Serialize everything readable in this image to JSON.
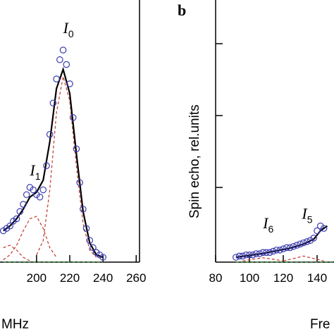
{
  "chart_data": [
    {
      "type": "scatter",
      "panel_letter": "",
      "xlabel": "MHz",
      "ylabel": "",
      "x_ticks": [
        200,
        220,
        240,
        260
      ],
      "xlim": [
        178,
        262
      ],
      "ylim": [
        0,
        1.0
      ],
      "axis_color": "#000000",
      "annotations": [
        {
          "text": "I",
          "sub": "0",
          "x": 216,
          "y": 0.95
        },
        {
          "text": "I",
          "sub": "1",
          "x": 196,
          "y": 0.36
        }
      ],
      "series": [
        {
          "role": "experimental",
          "marker": "open-circle",
          "color": "#3a3ab0",
          "x": [
            180,
            182,
            184,
            186,
            188,
            190,
            192,
            194,
            196,
            198,
            200,
            202,
            204,
            206,
            208,
            210,
            212,
            214,
            216,
            218,
            220,
            222,
            224,
            226,
            228,
            230,
            232,
            234,
            236,
            238,
            240
          ],
          "y": [
            0.13,
            0.14,
            0.15,
            0.17,
            0.18,
            0.21,
            0.24,
            0.28,
            0.31,
            0.3,
            0.28,
            0.27,
            0.3,
            0.4,
            0.53,
            0.66,
            0.76,
            0.84,
            0.88,
            0.82,
            0.74,
            0.6,
            0.47,
            0.33,
            0.22,
            0.14,
            0.09,
            0.06,
            0.04,
            0.03,
            0.02
          ]
        },
        {
          "role": "fit",
          "color": "#000000",
          "x": [
            180,
            184,
            188,
            192,
            196,
            200,
            204,
            208,
            212,
            216,
            220,
            224,
            228,
            232,
            236,
            240
          ],
          "y": [
            0.13,
            0.15,
            0.18,
            0.22,
            0.27,
            0.29,
            0.34,
            0.5,
            0.72,
            0.8,
            0.7,
            0.45,
            0.21,
            0.08,
            0.03,
            0.02
          ]
        },
        {
          "role": "component",
          "line": "dashed",
          "color": "#c0392b",
          "x": [
            200,
            204,
            208,
            212,
            216,
            220,
            224,
            228,
            232,
            236
          ],
          "y": [
            0.03,
            0.09,
            0.3,
            0.62,
            0.77,
            0.67,
            0.4,
            0.16,
            0.05,
            0.02
          ]
        },
        {
          "role": "component",
          "line": "dashed",
          "color": "#c0392b",
          "x": [
            180,
            184,
            188,
            192,
            196,
            200,
            204,
            208,
            212
          ],
          "y": [
            0.01,
            0.03,
            0.07,
            0.13,
            0.18,
            0.19,
            0.14,
            0.06,
            0.02
          ]
        },
        {
          "role": "component",
          "line": "dashed",
          "color": "#c0392b",
          "x": [
            180,
            184,
            188,
            192,
            196
          ],
          "y": [
            0.06,
            0.07,
            0.05,
            0.02,
            0.005
          ]
        },
        {
          "role": "baseline",
          "line": "dashed",
          "color": "#2e8b2e",
          "x": [
            180,
            240
          ],
          "y": [
            0.0,
            0.0
          ]
        }
      ]
    },
    {
      "type": "scatter",
      "panel_letter": "b",
      "xlabel": "Fre",
      "ylabel": "Spin echo, rel.units",
      "x_ticks": [
        80,
        100,
        120,
        140
      ],
      "xlim": [
        80,
        150
      ],
      "ylim": [
        0,
        1.0
      ],
      "axis_color": "#000000",
      "annotations": [
        {
          "text": "I",
          "sub": "6",
          "x": 108,
          "y": 0.14
        },
        {
          "text": "I",
          "sub": "5",
          "x": 131,
          "y": 0.18
        }
      ],
      "series": [
        {
          "role": "experimental",
          "marker": "open-circle",
          "color": "#3a3ab0",
          "x": [
            92,
            94,
            96,
            98,
            100,
            102,
            104,
            106,
            108,
            110,
            112,
            114,
            116,
            118,
            120,
            122,
            124,
            126,
            128,
            130,
            132,
            134,
            136,
            138,
            140,
            142,
            144
          ],
          "y": [
            0.02,
            0.025,
            0.025,
            0.03,
            0.03,
            0.03,
            0.035,
            0.035,
            0.04,
            0.04,
            0.04,
            0.045,
            0.05,
            0.05,
            0.055,
            0.06,
            0.06,
            0.065,
            0.07,
            0.075,
            0.08,
            0.085,
            0.09,
            0.1,
            0.13,
            0.15,
            0.14
          ]
        },
        {
          "role": "fit",
          "color": "#000000",
          "x": [
            92,
            100,
            108,
            116,
            124,
            132,
            138,
            142,
            146
          ],
          "y": [
            0.02,
            0.028,
            0.036,
            0.047,
            0.058,
            0.075,
            0.095,
            0.13,
            0.15
          ]
        },
        {
          "role": "component",
          "line": "dashed",
          "color": "#c0392b",
          "x": [
            96,
            102,
            108,
            114,
            120
          ],
          "y": [
            0.005,
            0.012,
            0.018,
            0.012,
            0.005
          ]
        },
        {
          "role": "component",
          "line": "dashed",
          "color": "#c0392b",
          "x": [
            120,
            126,
            132,
            138,
            144
          ],
          "y": [
            0.005,
            0.015,
            0.025,
            0.015,
            0.005
          ]
        },
        {
          "role": "baseline",
          "line": "dashed",
          "color": "#2e8b2e",
          "x": [
            92,
            150
          ],
          "y": [
            0.0,
            0.0
          ]
        }
      ]
    }
  ]
}
